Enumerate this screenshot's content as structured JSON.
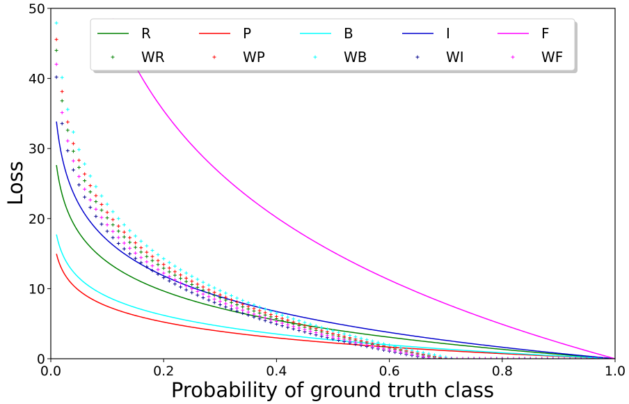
{
  "chart_data": {
    "type": "line",
    "title": "",
    "xlabel": "Probability of ground truth class",
    "ylabel": "Loss",
    "xlim": [
      0.0,
      1.0
    ],
    "ylim": [
      0,
      50
    ],
    "x_ticks": [
      "0.0",
      "0.2",
      "0.4",
      "0.6",
      "0.8",
      "1.0"
    ],
    "y_ticks": [
      "0",
      "10",
      "20",
      "30",
      "40",
      "50"
    ],
    "grid": false,
    "legend": {
      "placement": "top-center",
      "columns": 5
    },
    "series": [
      {
        "name": "R",
        "style": "line",
        "color": "#008000",
        "formula": "6 * ln(1/p)",
        "x": [
          0.01,
          0.02,
          0.05,
          0.1,
          0.2,
          0.3,
          0.4,
          0.5,
          0.6,
          0.7,
          0.8,
          0.9,
          1.0
        ],
        "y": [
          27.6,
          23.5,
          18.0,
          13.8,
          9.7,
          7.2,
          5.5,
          4.2,
          3.1,
          2.1,
          1.3,
          0.6,
          0.0
        ]
      },
      {
        "name": "P",
        "style": "line",
        "color": "#ff0000",
        "formula": "3.25 * ln(1/p)",
        "x": [
          0.01,
          0.02,
          0.05,
          0.1,
          0.2,
          0.3,
          0.4,
          0.5,
          0.6,
          0.7,
          0.8,
          0.9,
          1.0
        ],
        "y": [
          15.0,
          12.7,
          9.7,
          7.5,
          5.2,
          3.9,
          3.0,
          2.3,
          1.7,
          1.2,
          0.7,
          0.3,
          0.0
        ]
      },
      {
        "name": "B",
        "style": "line",
        "color": "#00ffff",
        "formula": "3.85 * ln(1/p)",
        "x": [
          0.01,
          0.02,
          0.05,
          0.1,
          0.2,
          0.3,
          0.4,
          0.5,
          0.6,
          0.7,
          0.8,
          0.9,
          1.0
        ],
        "y": [
          17.7,
          15.1,
          11.5,
          8.9,
          6.2,
          4.6,
          3.5,
          2.7,
          2.0,
          1.4,
          0.9,
          0.4,
          0.0
        ]
      },
      {
        "name": "I",
        "style": "line",
        "color": "#0000cd",
        "formula": "7.35 * ln(1/p)",
        "x": [
          0.01,
          0.02,
          0.05,
          0.1,
          0.2,
          0.3,
          0.4,
          0.5,
          0.6,
          0.7,
          0.8,
          0.9,
          1.0
        ],
        "y": [
          33.8,
          28.8,
          22.0,
          16.9,
          11.8,
          8.8,
          6.7,
          5.1,
          3.8,
          2.6,
          1.6,
          0.8,
          0.0
        ]
      },
      {
        "name": "F",
        "style": "line",
        "color": "#ff00ff",
        "formula": "22 * ln(1/p)",
        "x": [
          0.11,
          0.2,
          0.3,
          0.4,
          0.5,
          0.6,
          0.7,
          0.8,
          0.9,
          1.0
        ],
        "y": [
          48.6,
          35.4,
          26.5,
          20.2,
          15.2,
          11.2,
          7.8,
          4.9,
          2.3,
          0.0
        ]
      },
      {
        "name": "WR",
        "style": "marker",
        "color": "#008000",
        "formula": "10.38 * ln(1/p) - 3.8",
        "x_range": [
          0.01,
          0.99
        ],
        "x_step": 0.01,
        "x": [
          0.01,
          0.02,
          0.05,
          0.1,
          0.2,
          0.3,
          0.4,
          0.5,
          0.6,
          0.7,
          0.8,
          0.9
        ],
        "y": [
          44.0,
          36.8,
          27.3,
          20.1,
          12.9,
          8.7,
          5.7,
          3.4,
          1.5,
          -0.1,
          -1.5,
          -2.7
        ]
      },
      {
        "name": "WP",
        "style": "marker",
        "color": "#ff0000",
        "formula": "10.72 * ln(1/p) - 3.8",
        "x_range": [
          0.01,
          0.99
        ],
        "x_step": 0.01,
        "x": [
          0.01,
          0.02,
          0.05,
          0.1,
          0.2,
          0.3,
          0.4,
          0.5,
          0.6,
          0.7,
          0.8,
          0.9
        ],
        "y": [
          45.6,
          38.2,
          28.3,
          20.9,
          13.5,
          9.1,
          6.0,
          3.6,
          1.7,
          0.0,
          -1.4,
          -2.7
        ]
      },
      {
        "name": "WB",
        "style": "marker",
        "color": "#00ffff",
        "formula": "11.23 * ln(1/p) - 3.8",
        "x_range": [
          0.01,
          0.99
        ],
        "x_step": 0.01,
        "x": [
          0.01,
          0.02,
          0.05,
          0.1,
          0.2,
          0.3,
          0.4,
          0.5,
          0.6,
          0.7,
          0.8,
          0.9
        ],
        "y": [
          47.9,
          40.1,
          29.8,
          22.1,
          14.3,
          9.7,
          6.5,
          4.0,
          1.9,
          0.2,
          -1.3,
          -2.6
        ]
      },
      {
        "name": "WI",
        "style": "marker",
        "color": "#00008b",
        "formula": "9.55 * ln(1/p) - 3.8",
        "x_range": [
          0.01,
          0.99
        ],
        "x_step": 0.01,
        "x": [
          0.01,
          0.02,
          0.05,
          0.1,
          0.2,
          0.3,
          0.4,
          0.5,
          0.6,
          0.7,
          0.8,
          0.9
        ],
        "y": [
          40.2,
          33.6,
          24.8,
          18.2,
          11.6,
          7.7,
          5.0,
          2.8,
          1.1,
          -0.4,
          -1.7,
          -2.8
        ]
      },
      {
        "name": "WF",
        "style": "marker",
        "color": "#ff00ff",
        "formula": "9.95 * ln(1/p) - 3.8",
        "x_range": [
          0.01,
          0.99
        ],
        "x_step": 0.01,
        "x": [
          0.01,
          0.02,
          0.05,
          0.1,
          0.2,
          0.3,
          0.4,
          0.5,
          0.6,
          0.7,
          0.8,
          0.9
        ],
        "y": [
          42.0,
          35.1,
          26.0,
          19.1,
          12.2,
          8.2,
          5.3,
          3.1,
          1.3,
          -0.3,
          -1.6,
          -2.8
        ]
      }
    ]
  }
}
